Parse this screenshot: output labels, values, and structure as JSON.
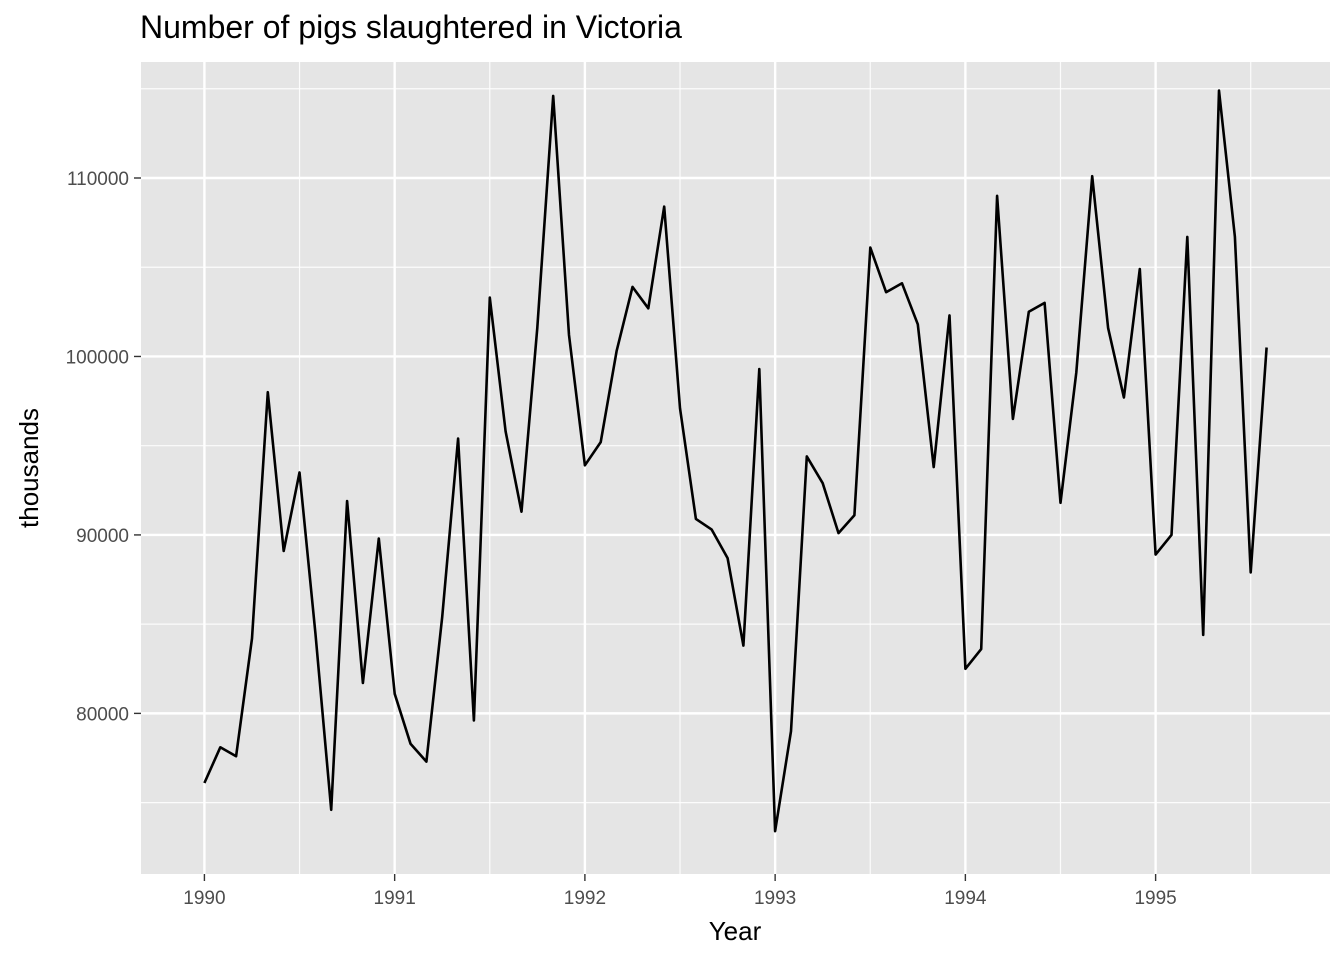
{
  "chart_data": {
    "type": "line",
    "title": "Number of pigs slaughtered in Victoria",
    "xlabel": "Year",
    "ylabel": "thousands",
    "xlim": [
      "1989-09",
      "1995-12"
    ],
    "ylim": [
      71000,
      116500
    ],
    "x_ticks": [
      "1990",
      "1991",
      "1992",
      "1993",
      "1994",
      "1995"
    ],
    "y_ticks": [
      "80000",
      "90000",
      "100000",
      "110000"
    ],
    "grid": true,
    "legend": "none",
    "colors": {
      "panel": "#e5e5e5",
      "grid": "#ffffff",
      "line": "#000000"
    },
    "x": [
      "1990-01",
      "1990-02",
      "1990-03",
      "1990-04",
      "1990-05",
      "1990-06",
      "1990-07",
      "1990-08",
      "1990-09",
      "1990-10",
      "1990-11",
      "1990-12",
      "1991-01",
      "1991-02",
      "1991-03",
      "1991-04",
      "1991-05",
      "1991-06",
      "1991-07",
      "1991-08",
      "1991-09",
      "1991-10",
      "1991-11",
      "1991-12",
      "1992-01",
      "1992-02",
      "1992-03",
      "1992-04",
      "1992-05",
      "1992-06",
      "1992-07",
      "1992-08",
      "1992-09",
      "1992-10",
      "1992-11",
      "1992-12",
      "1993-01",
      "1993-02",
      "1993-03",
      "1993-04",
      "1993-05",
      "1993-06",
      "1993-07",
      "1993-08",
      "1993-09",
      "1993-10",
      "1993-11",
      "1993-12",
      "1994-01",
      "1994-02",
      "1994-03",
      "1994-04",
      "1994-05",
      "1994-06",
      "1994-07",
      "1994-08",
      "1994-09",
      "1994-10",
      "1994-11",
      "1994-12",
      "1995-01",
      "1995-02",
      "1995-03",
      "1995-04",
      "1995-05",
      "1995-06",
      "1995-07",
      "1995-08"
    ],
    "series": [
      {
        "values": [
          76100,
          78100,
          77600,
          84200,
          98000,
          89100,
          93500,
          84500,
          74600,
          91900,
          81700,
          89800,
          81100,
          78300,
          77300,
          85400,
          95400,
          79600,
          103300,
          95800,
          91300,
          101600,
          114600,
          101200,
          93900,
          95200,
          100300,
          103900,
          102700,
          108400,
          97100,
          90900,
          90300,
          88700,
          83800,
          99300,
          73400,
          79000,
          94400,
          92900,
          90100,
          91100,
          106100,
          103600,
          104100,
          101800,
          93800,
          102300,
          82500,
          83600,
          109000,
          96500,
          102500,
          103000,
          91800,
          99100,
          110100,
          101600,
          97700,
          104900,
          88900,
          90000,
          106700,
          84400,
          114900,
          106700,
          87900,
          100500
        ]
      }
    ]
  }
}
